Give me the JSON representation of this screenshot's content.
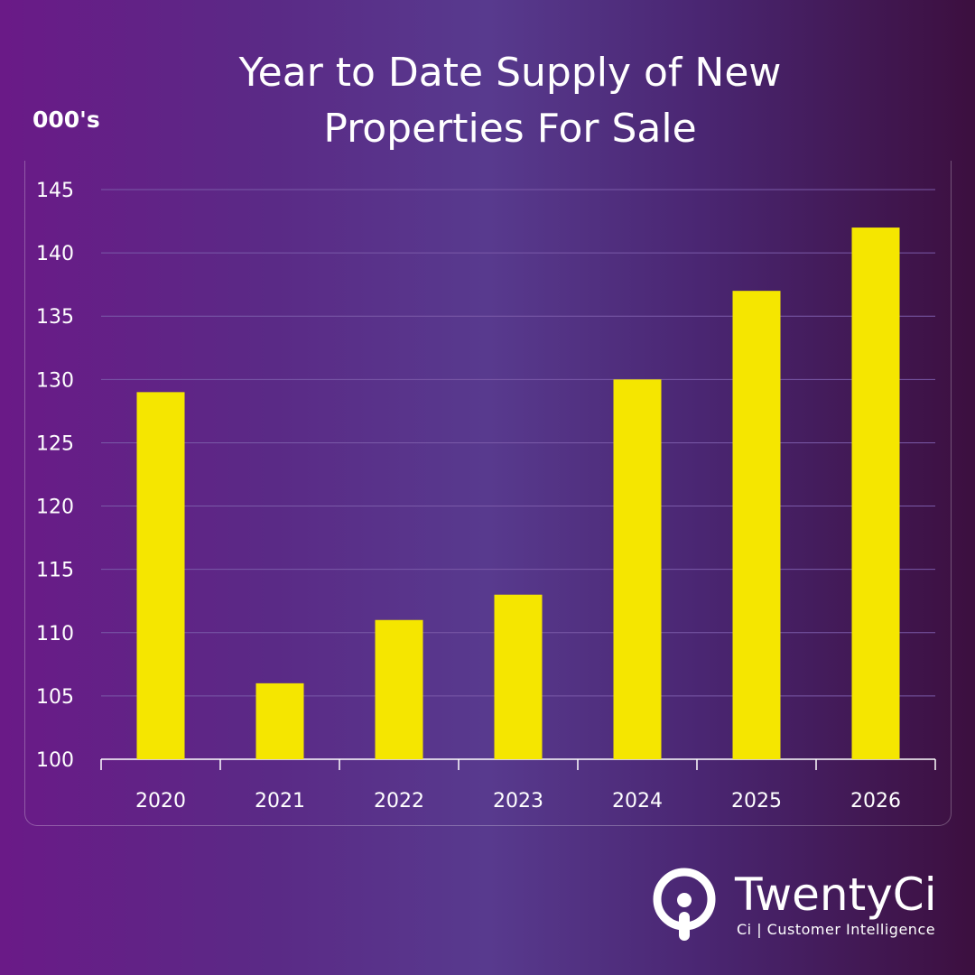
{
  "chart_data": {
    "type": "bar",
    "title": "Year to Date Supply of New Properties For Sale",
    "title_lines": [
      "Year to Date Supply of New",
      "Properties For Sale"
    ],
    "ylabel": "000's",
    "xlabel": "",
    "categories": [
      "2020",
      "2021",
      "2022",
      "2023",
      "2024",
      "2025",
      "2026"
    ],
    "values": [
      129,
      106,
      111,
      113,
      130,
      137,
      142
    ],
    "ylim": [
      100,
      145
    ],
    "yticks": [
      100,
      105,
      110,
      115,
      120,
      125,
      130,
      135,
      140,
      145
    ],
    "grid": true,
    "bar_color": "#f5e600",
    "gridline_color": "#7a5aa8"
  },
  "branding": {
    "name": "TwentyCi",
    "tagline": "Ci | Customer Intelligence",
    "logo_icon": "info-pin-icon"
  }
}
